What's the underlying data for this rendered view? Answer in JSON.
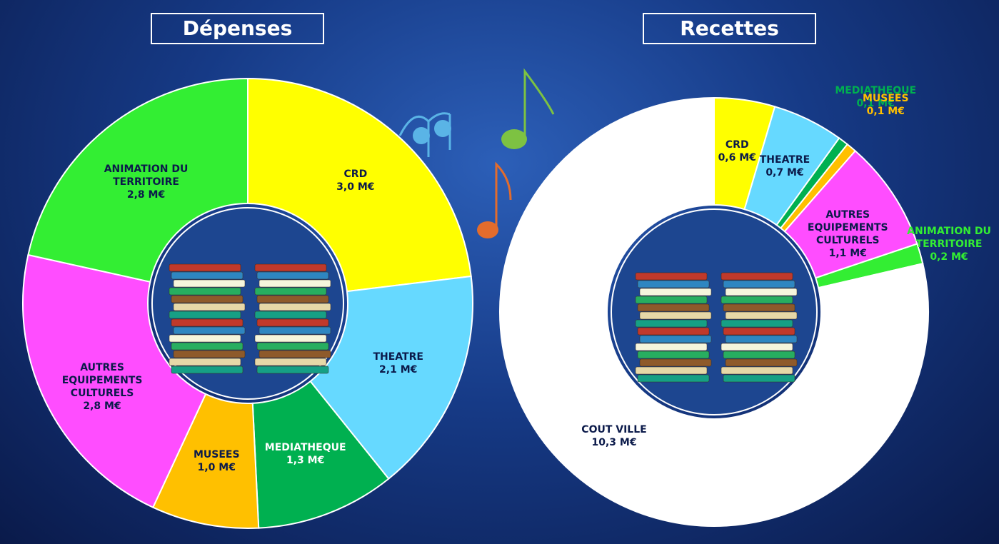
{
  "chart_data": [
    {
      "type": "donut",
      "title": "Dépenses",
      "categories": [
        "CRD",
        "THEATRE",
        "MEDIATHEQUE",
        "MUSEES",
        "AUTRES EQUIPEMENTS CULTURELS",
        "ANIMATION DU TERRITOIRE"
      ],
      "values": [
        3.0,
        2.1,
        1.3,
        1.0,
        2.8,
        2.8
      ],
      "value_labels": [
        "3,0 M€",
        "2,1 M€",
        "1,3 M€",
        "1,0 M€",
        "2,8 M€",
        "2,8 M€"
      ],
      "colors": [
        "#ffff00",
        "#66d9ff",
        "#00b050",
        "#ffc000",
        "#ff4dff",
        "#33ee33"
      ]
    },
    {
      "type": "donut",
      "title": "Recettes",
      "categories": [
        "CRD",
        "THEATRE",
        "MEDIATHEQUE",
        "MUSEES",
        "AUTRES EQUIPEMENTS CULTURELS",
        "ANIMATION DU TERRITOIRE",
        "COUT VILLE"
      ],
      "values": [
        0.6,
        0.7,
        0.1,
        0.1,
        1.1,
        0.2,
        10.3
      ],
      "value_labels": [
        "0,6 M€",
        "0,7 M€",
        "0,1 M€",
        "0,1 M€",
        "1,1 M€",
        "0,2 M€",
        "10,3 M€"
      ],
      "colors": [
        "#ffff00",
        "#66d9ff",
        "#00b050",
        "#ffc000",
        "#ff4dff",
        "#33ee33",
        "#ffffff"
      ]
    }
  ]
}
